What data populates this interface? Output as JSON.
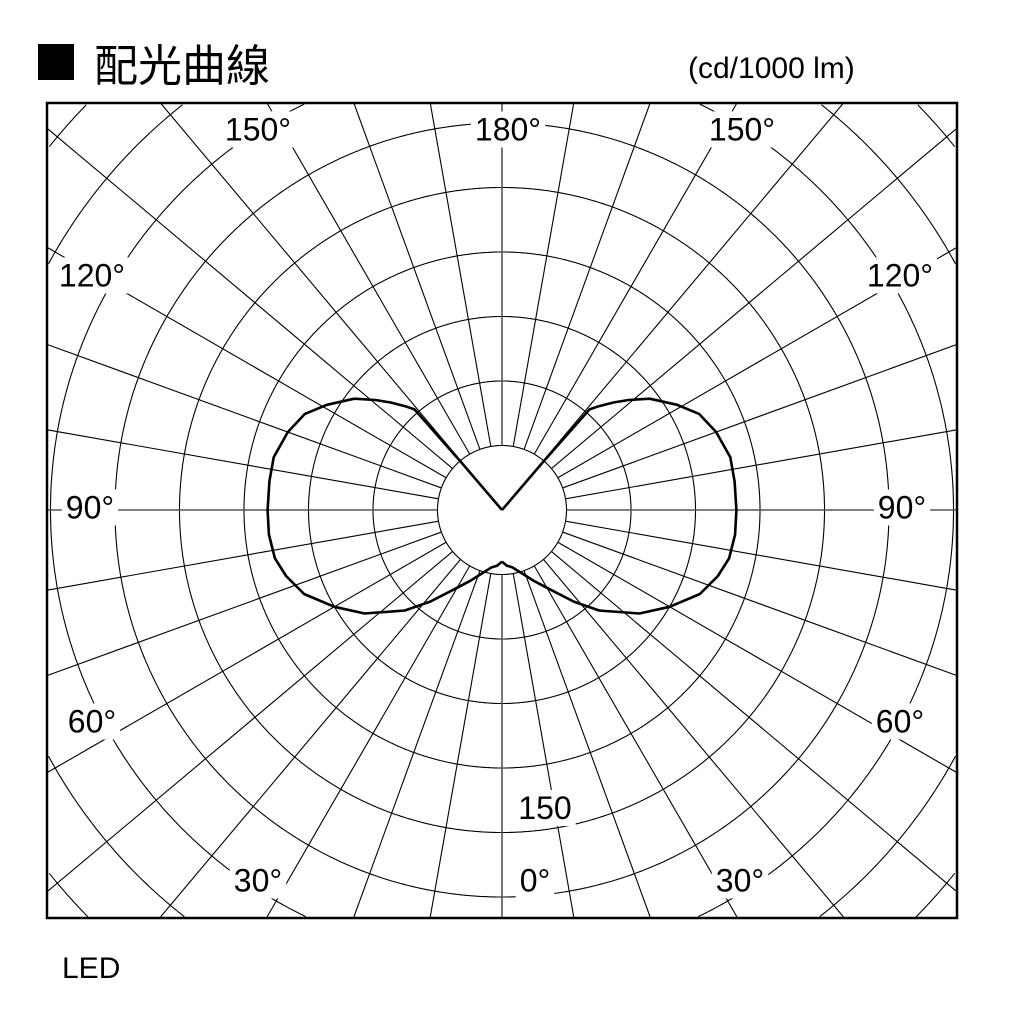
{
  "title": "配光曲線",
  "unit_label": "(cd/1000 lm)",
  "legend_label": "LED",
  "chart_data": {
    "type": "polar",
    "title": "配光曲線",
    "unit": "cd/1000 lm",
    "radial_step": 30,
    "radial_tick_label": "150",
    "radial_tick_value": 150,
    "angle_step": 10,
    "angle_labels": {
      "0": "0°",
      "30": "30°",
      "60": "60°",
      "90": "90°",
      "120": "120°",
      "150": "150°",
      "180": "180°"
    },
    "grid": true,
    "symmetric": true,
    "series": [
      {
        "name": "LED",
        "color": "#000000",
        "points": [
          [
            0,
            24
          ],
          [
            5,
            26
          ],
          [
            10,
            27
          ],
          [
            16,
            30
          ],
          [
            24,
            36
          ],
          [
            31,
            43
          ],
          [
            38,
            54
          ],
          [
            44,
            65
          ],
          [
            53,
            80
          ],
          [
            60,
            90
          ],
          [
            67,
            100
          ],
          [
            73,
            105
          ],
          [
            78,
            108
          ],
          [
            84,
            109
          ],
          [
            90,
            109
          ],
          [
            97,
            109
          ],
          [
            103,
            109
          ],
          [
            110,
            106
          ],
          [
            116,
            102
          ],
          [
            121,
            95
          ],
          [
            127,
            86
          ],
          [
            131,
            78
          ],
          [
            134,
            72
          ],
          [
            137,
            66
          ],
          [
            139,
            62
          ],
          [
            139.5,
            30
          ],
          [
            140,
            0
          ],
          [
            180,
            0
          ]
        ]
      }
    ]
  }
}
